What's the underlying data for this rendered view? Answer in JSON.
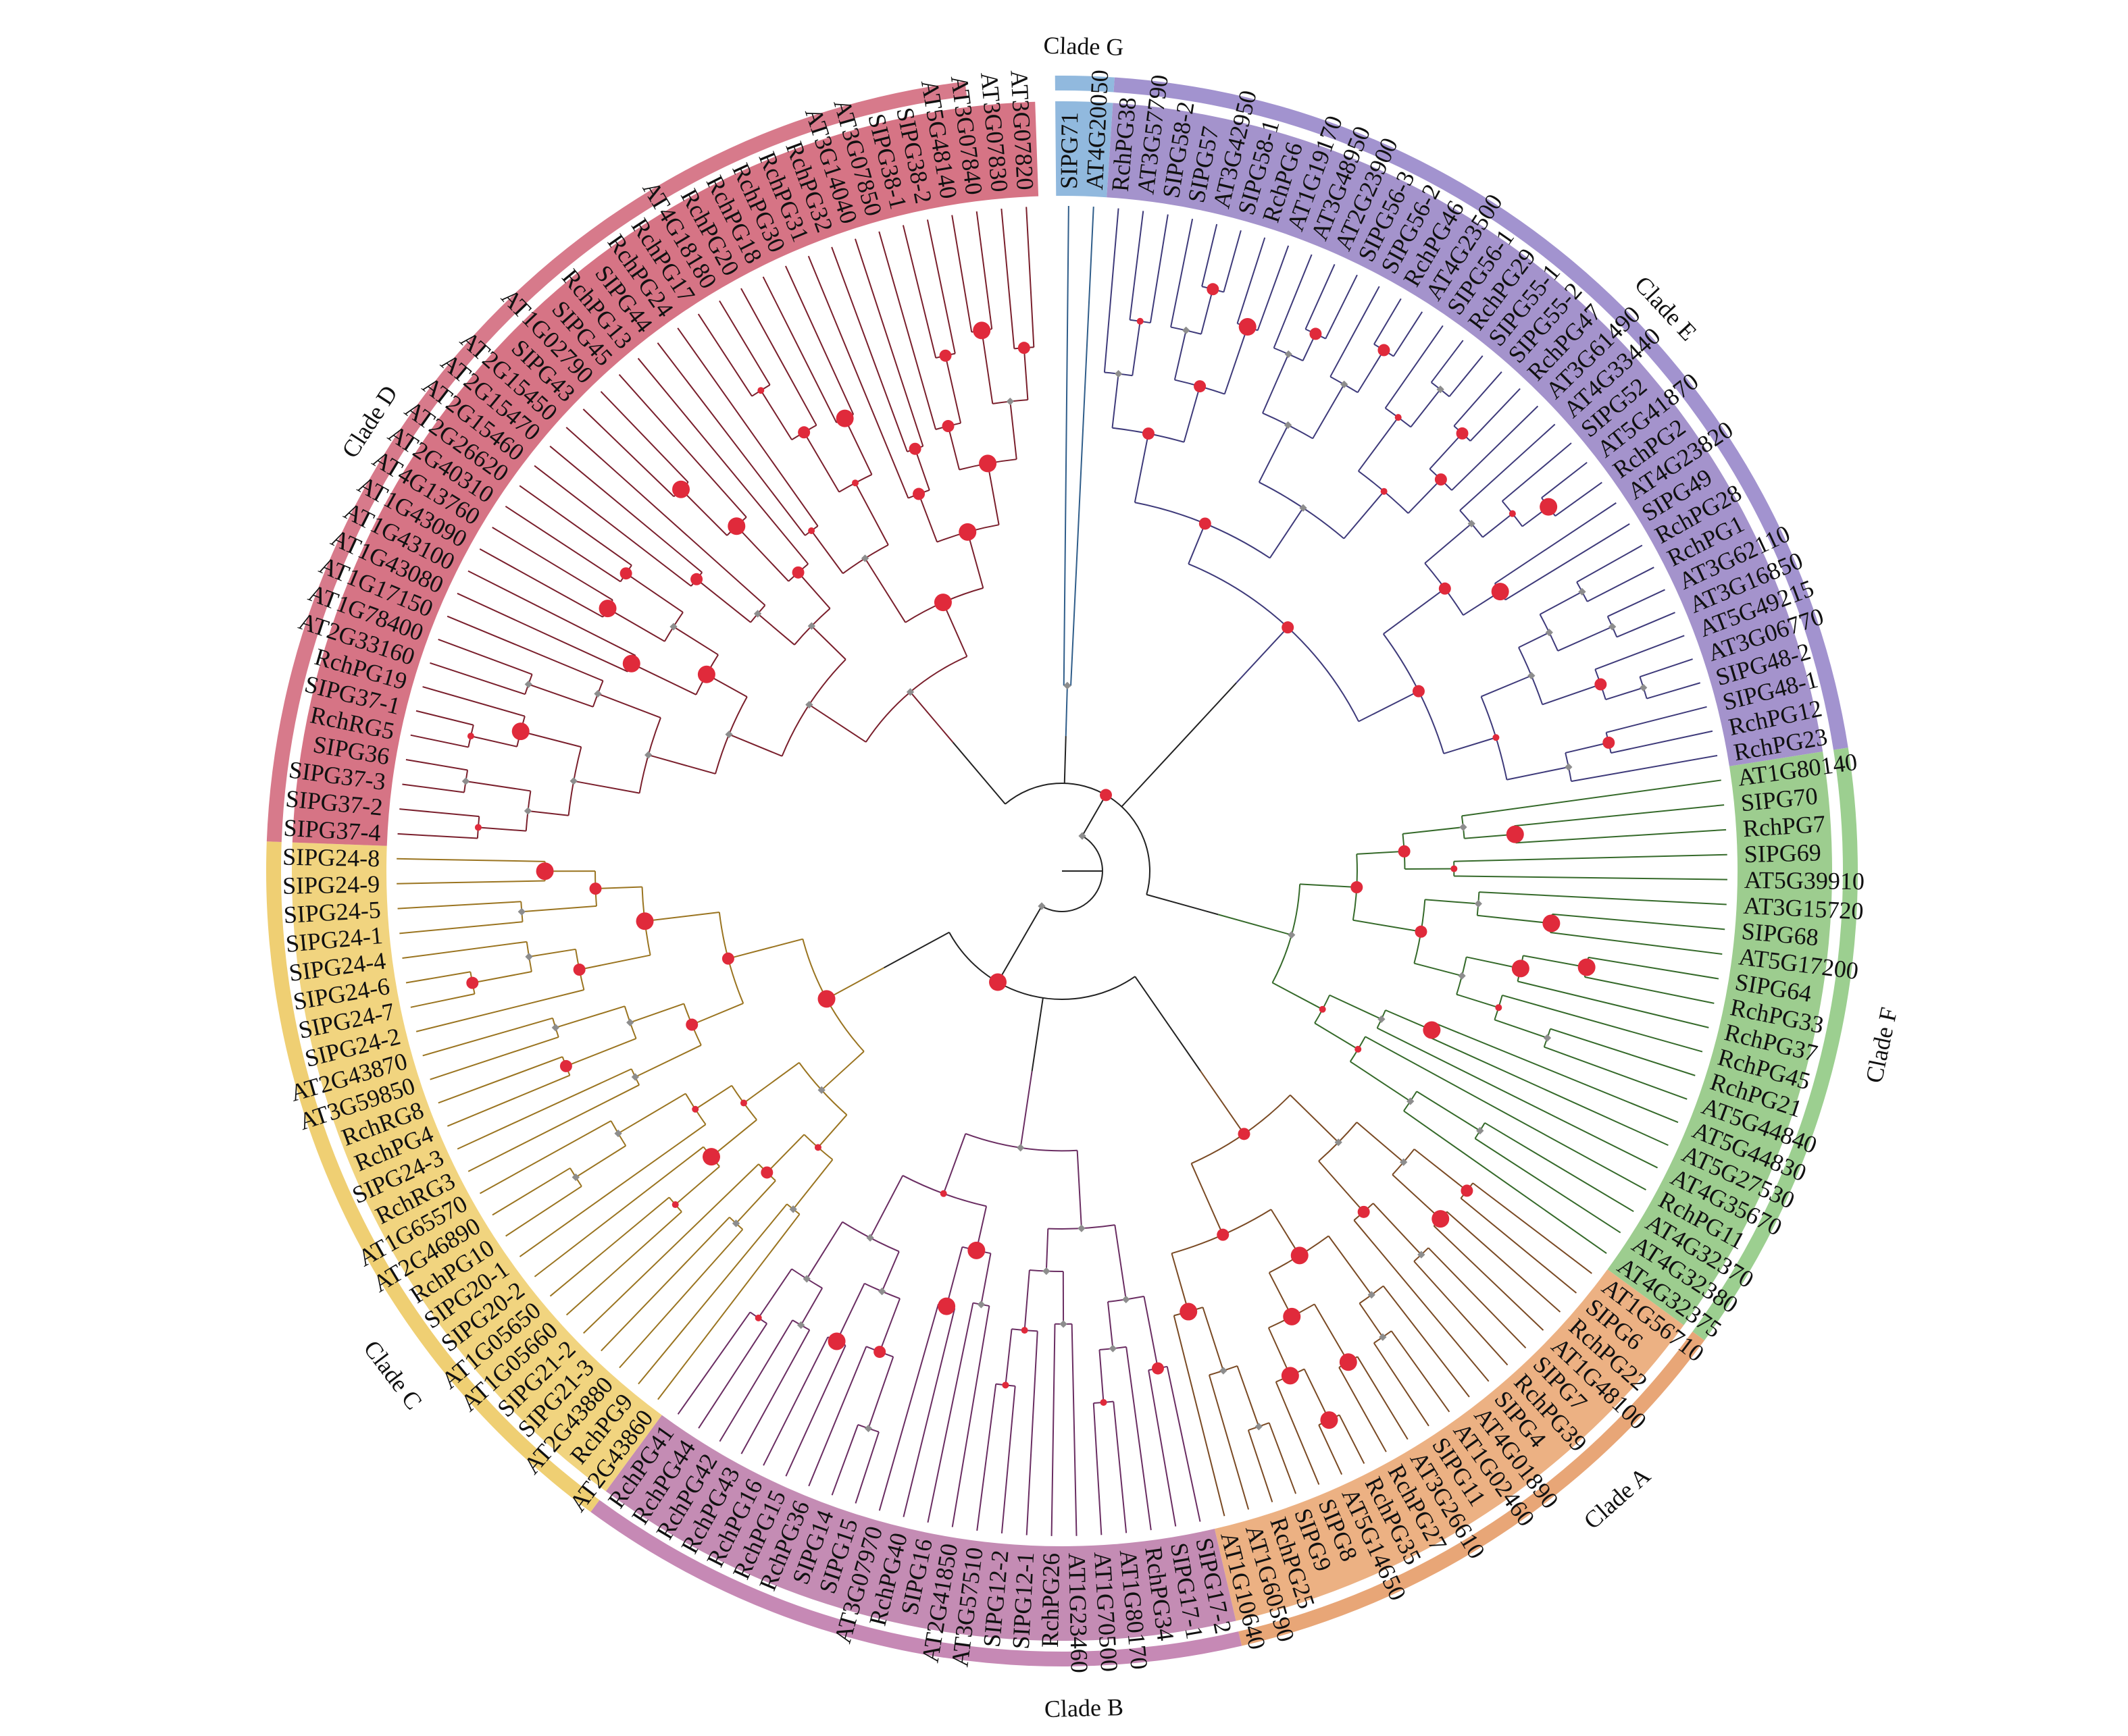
{
  "clade_colors": {
    "A": {
      "band": "#ecb183",
      "ring": "#e8a677",
      "branch": "#7a4a24"
    },
    "B": {
      "band": "#c48cb4",
      "ring": "#c689b5",
      "branch": "#6a2d62"
    },
    "C": {
      "band": "#f1d47f",
      "ring": "#efcf73",
      "branch": "#9a7420"
    },
    "D": {
      "band": "#d67485",
      "ring": "#d77a8b",
      "branch": "#7a1f2c"
    },
    "E": {
      "band": "#a493cc",
      "ring": "#a293cf",
      "branch": "#3e3a7a"
    },
    "F": {
      "band": "#9dcd8f",
      "ring": "#9ccf90",
      "branch": "#356a2a"
    },
    "G": {
      "band": "#91b9de",
      "ring": "#91b9de",
      "branch": "#2f5d8a"
    }
  },
  "colors": {
    "node_red": "#e02a3b",
    "node_grey": "#8d8d8d",
    "root_branch": "#222222"
  },
  "clades": [
    {
      "id": "G",
      "label": "Clade G",
      "leaves": [
        "SIPG71",
        "AT4G20050"
      ]
    },
    {
      "id": "E",
      "label": "Clade E",
      "leaves": [
        "RchPG38",
        "AT3G57790",
        "SIPG58-2",
        "SIPG57",
        "AT3G42950",
        "SIPG58-1",
        "RchPG6",
        "AT1G19170",
        "AT3G48950",
        "AT2G23900",
        "SIPG56-3",
        "SIPG56-2",
        "RchPG46",
        "AT4G23500",
        "SIPG56-1",
        "RchPG29",
        "SIPG55-1",
        "SIPG55-2",
        "RchPG47",
        "AT3G61490",
        "AT4G33440",
        "SIPG52",
        "AT5G41870",
        "RchPG2",
        "AT4G23820",
        "SIPG49",
        "RchPG28",
        "RchPG1",
        "AT3G62110",
        "AT3G16850",
        "AT5G49215",
        "AT3G06770",
        "SIPG48-2",
        "SIPG48-1",
        "RchPG12",
        "RchPG23"
      ]
    },
    {
      "id": "F",
      "label": "Clade F",
      "leaves": [
        "AT1G80140",
        "SIPG70",
        "RchPG7",
        "SIPG69",
        "AT5G39910",
        "AT3G15720",
        "SIPG68",
        "AT5G17200",
        "SIPG64",
        "RchPG33",
        "RchPG37",
        "RchPG45",
        "RchPG21",
        "AT5G44840",
        "AT5G44830",
        "AT5G27530",
        "AT4G35670",
        "RchPG11",
        "AT4G32370",
        "AT4G32380",
        "AT4G32375"
      ]
    },
    {
      "id": "A",
      "label": "Clade A",
      "leaves": [
        "AT1G56710",
        "SIPG6",
        "RchPG22",
        "AT1G48100",
        "SIPG7",
        "RchPG39",
        "SIPG4",
        "AT4G01890",
        "AT1G02460",
        "SIPG11",
        "AT3G26610",
        "RchPG27",
        "RchPG35",
        "AT5G14650",
        "SIPG8",
        "SIPG9",
        "RchPG25",
        "AT1G60590",
        "AT1G10640"
      ]
    },
    {
      "id": "B",
      "label": "Clade B",
      "leaves": [
        "SIPG17-2",
        "SIPG17-1",
        "RchPG34",
        "AT1G80170",
        "AT1G70500",
        "AT1G23460",
        "RchPG26",
        "SIPG12-1",
        "SIPG12-2",
        "AT3G57510",
        "AT2G41850",
        "SIPG16",
        "RchPG40",
        "AT3G07970",
        "SIPG15",
        "SIPG14",
        "RchPG36",
        "RchPG15",
        "RchPG16",
        "RchPG43",
        "RchPG42",
        "RchPG44",
        "RchPG41"
      ]
    },
    {
      "id": "C",
      "label": "Clade C",
      "leaves": [
        "AT2G43860",
        "RchPG9",
        "AT2G43880",
        "SIPG21-3",
        "SIPG21-2",
        "AT1G05660",
        "AT1G05650",
        "SIPG20-2",
        "SIPG20-1",
        "RchPG10",
        "AT2G46890",
        "AT1G65570",
        "RchRG3",
        "SIPG24-3",
        "RchPG4",
        "RchRG8",
        "AT3G59850",
        "AT2G43870",
        "SIPG24-2",
        "SIPG24-7",
        "SIPG24-6",
        "SIPG24-4",
        "SIPG24-1",
        "SIPG24-5",
        "SIPG24-9",
        "SIPG24-8"
      ]
    },
    {
      "id": "D",
      "label": "Clade D",
      "leaves": [
        "SIPG37-4",
        "SIPG37-2",
        "SIPG37-3",
        "SIPG36",
        "RchRG5",
        "SIPG37-1",
        "RchPG19",
        "AT2G33160",
        "AT1G78400",
        "AT1G17150",
        "AT1G43080",
        "AT1G43100",
        "AT1G43090",
        "AT4G13760",
        "AT2G40310",
        "AT2G26620",
        "AT2G15460",
        "AT2G15470",
        "AT2G15450",
        "SIPG43",
        "AT1G02790",
        "SIPG45",
        "RchPG13",
        "SIPG44",
        "RchPG24",
        "RchPG17",
        "AT4G18180",
        "RchPG20",
        "RchPG18",
        "RchPG30",
        "RchPG31",
        "RchPG32",
        "AT3G14040",
        "AT3G07850",
        "SIPG38-1",
        "SIPG38-2",
        "AT5G48140",
        "AT3G07840",
        "AT3G07830",
        "AT3G07820"
      ]
    }
  ]
}
